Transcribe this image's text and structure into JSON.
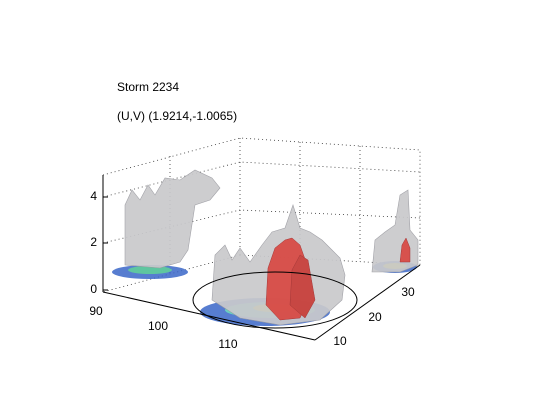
{
  "title": "Storm 2234",
  "subtitle": "(U,V) (1.9214,-1.0065)",
  "z_ticks": [
    "4",
    "2",
    "0"
  ],
  "x_ticks": [
    "90",
    "100",
    "110"
  ],
  "y_ticks": [
    "10",
    "20",
    "30"
  ]
}
